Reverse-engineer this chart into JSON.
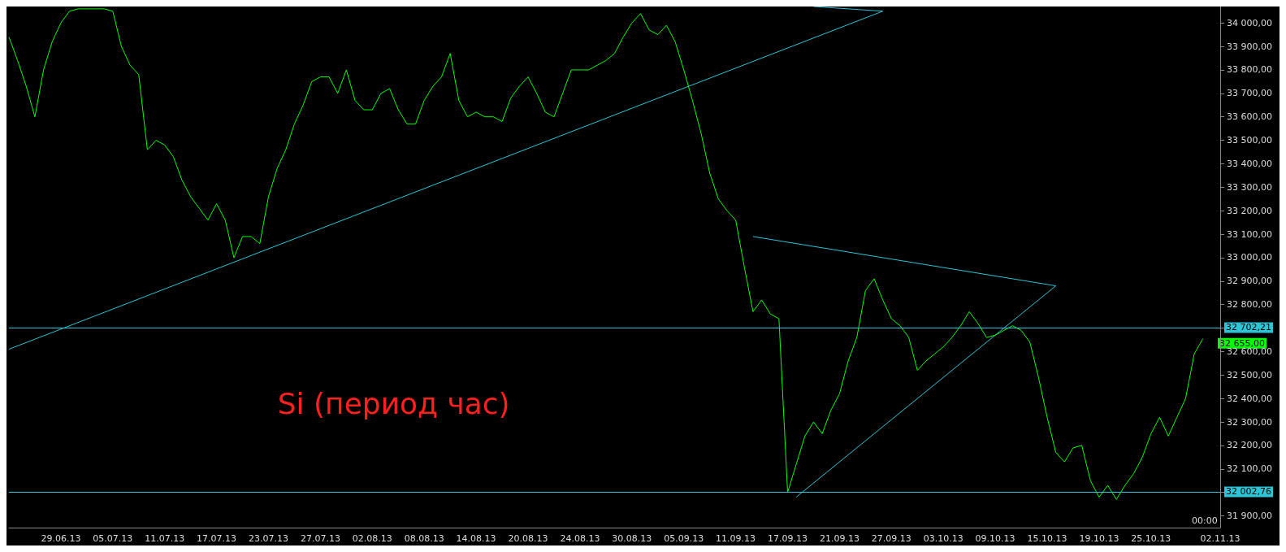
{
  "chart_data": {
    "type": "line",
    "marker": "none",
    "categories": [
      null,
      null,
      null,
      null,
      null,
      null,
      "29.06.13",
      null,
      null,
      null,
      null,
      null,
      "05.07.13",
      null,
      null,
      null,
      null,
      null,
      "11.07.13",
      null,
      null,
      null,
      null,
      null,
      "17.07.13",
      null,
      null,
      null,
      null,
      null,
      "23.07.13",
      null,
      null,
      null,
      null,
      null,
      "27.07.13",
      null,
      null,
      null,
      null,
      null,
      "02.08.13",
      null,
      null,
      null,
      null,
      null,
      "08.08.13",
      null,
      null,
      null,
      null,
      null,
      "14.08.13",
      null,
      null,
      null,
      null,
      null,
      "20.08.13",
      null,
      null,
      null,
      null,
      null,
      "24.08.13",
      null,
      null,
      null,
      null,
      null,
      "30.08.13",
      null,
      null,
      null,
      null,
      null,
      "05.09.13",
      null,
      null,
      null,
      null,
      null,
      "11.09.13",
      null,
      null,
      null,
      null,
      null,
      "17.09.13",
      null,
      null,
      null,
      null,
      null,
      "21.09.13",
      null,
      null,
      null,
      null,
      null,
      "27.09.13",
      null,
      null,
      null,
      null,
      null,
      "03.10.13",
      null,
      null,
      null,
      null,
      null,
      "09.10.13",
      null,
      null,
      null,
      null,
      null,
      "15.10.13",
      null,
      null,
      null,
      null,
      null,
      "19.10.13",
      null,
      null,
      null,
      null,
      null,
      "25.10.13",
      null,
      null,
      null,
      null,
      null,
      null,
      null,
      "02.11.13"
    ],
    "series": [
      {
        "color": "#00ff00",
        "values": [
          33940,
          33840,
          33730,
          33600,
          33800,
          33920,
          34000,
          34050,
          34060,
          34060,
          34060,
          34060,
          34050,
          33900,
          33820,
          33780,
          33460,
          33500,
          33480,
          33430,
          33330,
          33260,
          33210,
          33160,
          33230,
          33160,
          33000,
          33090,
          33090,
          33060,
          33260,
          33380,
          33460,
          33570,
          33650,
          33750,
          33770,
          33770,
          33700,
          33800,
          33670,
          33630,
          33630,
          33700,
          33720,
          33630,
          33570,
          33570,
          33670,
          33730,
          33770,
          33870,
          33670,
          33600,
          33620,
          33600,
          33600,
          33580,
          33680,
          33730,
          33770,
          33700,
          33620,
          33600,
          33700,
          33800,
          33800,
          33800,
          33820,
          33840,
          33870,
          33940,
          34000,
          34040,
          33970,
          33950,
          33990,
          33920,
          33800,
          33670,
          33530,
          33360,
          33250,
          33200,
          33160,
          32960,
          32770,
          32820,
          32760,
          32740,
          32000,
          32120,
          32240,
          32300,
          32250,
          32350,
          32420,
          32560,
          32660,
          32860,
          32910,
          32820,
          32740,
          32710,
          32660,
          32520,
          32560,
          32590,
          32620,
          32660,
          32710,
          32770,
          32720,
          32660,
          32670,
          32690,
          32710,
          32690,
          32640,
          32490,
          32320,
          32170,
          32130,
          32190,
          32200,
          32050,
          31980,
          32030,
          31970,
          32030,
          32080,
          32150,
          32250,
          32320,
          32240,
          32320,
          32400,
          32590,
          32655,
          null,
          null
        ]
      },
      {
        "type": "line",
        "color": "#2ec4d6",
        "values": [
          32610,
          null,
          null,
          null,
          null,
          null,
          null,
          null,
          null,
          null,
          null,
          null,
          null,
          null,
          null,
          null,
          null,
          null,
          null,
          null,
          null,
          null,
          null,
          null,
          null,
          null,
          null,
          null,
          null,
          null,
          null,
          null,
          null,
          null,
          null,
          null,
          null,
          null,
          null,
          null,
          null,
          null,
          null,
          null,
          null,
          null,
          null,
          null,
          null,
          null,
          null,
          null,
          null,
          null,
          null,
          null,
          null,
          null,
          null,
          null,
          null,
          null,
          null,
          null,
          null,
          null,
          null,
          null,
          null,
          null,
          null,
          null,
          null,
          null,
          null,
          null,
          null,
          null,
          null,
          null,
          null,
          null,
          null,
          null,
          null,
          null,
          null,
          null,
          null,
          null,
          null,
          null,
          null,
          null,
          null,
          null,
          null,
          null,
          null,
          null,
          null,
          34050,
          null,
          null,
          null,
          null,
          null,
          null,
          null,
          null,
          null,
          null,
          null,
          null,
          null,
          null,
          null,
          null,
          null,
          null,
          null,
          null,
          null,
          null,
          null,
          null,
          null,
          null,
          null,
          null,
          null,
          null,
          null,
          null,
          null,
          null,
          null,
          null,
          null,
          null,
          null
        ]
      },
      {
        "type": "line",
        "color": "#2ec4d6",
        "values": [
          null,
          null,
          null,
          null,
          null,
          null,
          null,
          null,
          null,
          null,
          null,
          null,
          null,
          null,
          null,
          null,
          null,
          null,
          null,
          null,
          null,
          null,
          null,
          null,
          null,
          null,
          null,
          null,
          null,
          null,
          null,
          null,
          null,
          null,
          null,
          null,
          null,
          null,
          null,
          null,
          null,
          null,
          null,
          null,
          null,
          null,
          null,
          null,
          null,
          null,
          null,
          null,
          null,
          null,
          null,
          null,
          null,
          null,
          null,
          null,
          null,
          null,
          null,
          null,
          null,
          null,
          null,
          null,
          null,
          null,
          null,
          null,
          null,
          null,
          null,
          null,
          null,
          null,
          null,
          null,
          null,
          null,
          null,
          null,
          null,
          null,
          null,
          null,
          null,
          null,
          null,
          null,
          null,
          34070,
          null,
          null,
          null,
          null,
          null,
          null,
          null,
          34050,
          null,
          null,
          null,
          null,
          null,
          null,
          null,
          null,
          null,
          null,
          null,
          null,
          null,
          null,
          null,
          null,
          null,
          null,
          null,
          null,
          null,
          null,
          null,
          null,
          null,
          null,
          null,
          null,
          null,
          null,
          null,
          null,
          null,
          null,
          null,
          null,
          null,
          null,
          null
        ]
      },
      {
        "type": "line",
        "color": "#2ec4d6",
        "values": [
          null,
          null,
          null,
          null,
          null,
          null,
          null,
          null,
          null,
          null,
          null,
          null,
          null,
          null,
          null,
          null,
          null,
          null,
          null,
          null,
          null,
          null,
          null,
          null,
          null,
          null,
          null,
          null,
          null,
          null,
          null,
          null,
          null,
          null,
          null,
          null,
          null,
          null,
          null,
          null,
          null,
          null,
          null,
          null,
          null,
          null,
          null,
          null,
          null,
          null,
          null,
          null,
          null,
          null,
          null,
          null,
          null,
          null,
          null,
          null,
          null,
          null,
          null,
          null,
          null,
          null,
          null,
          null,
          null,
          null,
          null,
          null,
          null,
          null,
          null,
          null,
          null,
          null,
          null,
          null,
          null,
          null,
          null,
          null,
          null,
          null,
          33090,
          null,
          null,
          null,
          null,
          null,
          null,
          null,
          null,
          null,
          null,
          null,
          null,
          null,
          null,
          null,
          null,
          null,
          null,
          null,
          null,
          null,
          null,
          null,
          null,
          null,
          null,
          null,
          null,
          null,
          null,
          null,
          null,
          null,
          null,
          32880,
          null,
          null,
          null,
          null,
          null,
          null,
          null,
          null,
          null,
          null,
          null,
          null,
          null,
          null,
          null,
          null,
          null,
          null,
          null
        ]
      },
      {
        "type": "line",
        "color": "#2ec4d6",
        "values": [
          null,
          null,
          null,
          null,
          null,
          null,
          null,
          null,
          null,
          null,
          null,
          null,
          null,
          null,
          null,
          null,
          null,
          null,
          null,
          null,
          null,
          null,
          null,
          null,
          null,
          null,
          null,
          null,
          null,
          null,
          null,
          null,
          null,
          null,
          null,
          null,
          null,
          null,
          null,
          null,
          null,
          null,
          null,
          null,
          null,
          null,
          null,
          null,
          null,
          null,
          null,
          null,
          null,
          null,
          null,
          null,
          null,
          null,
          null,
          null,
          null,
          null,
          null,
          null,
          null,
          null,
          null,
          null,
          null,
          null,
          null,
          null,
          null,
          null,
          null,
          null,
          null,
          null,
          null,
          null,
          null,
          null,
          null,
          null,
          null,
          null,
          null,
          null,
          null,
          null,
          null,
          31980,
          null,
          null,
          null,
          null,
          null,
          null,
          null,
          null,
          null,
          null,
          null,
          null,
          null,
          null,
          null,
          null,
          null,
          null,
          null,
          null,
          null,
          null,
          null,
          null,
          null,
          null,
          null,
          null,
          null,
          32880,
          null,
          null,
          null,
          null,
          null,
          null,
          null,
          null,
          null,
          null,
          null,
          null,
          null,
          null,
          null,
          null,
          null,
          null,
          null
        ]
      }
    ],
    "ylim": [
      31850,
      34070
    ],
    "yticks": [
      {
        "value": 31900,
        "label": "31 900,00"
      },
      {
        "value": 32000,
        "label": null
      },
      {
        "value": 32100,
        "label": "32 100,00"
      },
      {
        "value": 32200,
        "label": "32 200,00"
      },
      {
        "value": 32300,
        "label": "32 300,00"
      },
      {
        "value": 32400,
        "label": "32 400,00"
      },
      {
        "value": 32500,
        "label": "32 500,00"
      },
      {
        "value": 32600,
        "label": "32 600,00"
      },
      {
        "value": 32700,
        "label": null
      },
      {
        "value": 32800,
        "label": "32 800,00"
      },
      {
        "value": 32900,
        "label": "32 900,00"
      },
      {
        "value": 33000,
        "label": "33 000,00"
      },
      {
        "value": 33100,
        "label": "33 100,00"
      },
      {
        "value": 33200,
        "label": "33 200,00"
      },
      {
        "value": 33300,
        "label": "33 300,00"
      },
      {
        "value": 33400,
        "label": "33 400,00"
      },
      {
        "value": 33500,
        "label": "33 500,00"
      },
      {
        "value": 33600,
        "label": "33 600,00"
      },
      {
        "value": 33700,
        "label": "33 700,00"
      },
      {
        "value": 33800,
        "label": "33 800,00"
      },
      {
        "value": 33900,
        "label": "33 900,00"
      },
      {
        "value": 34000,
        "label": "34 000,00"
      }
    ],
    "ref_lines": [
      {
        "axis": "y",
        "value": 32702.21,
        "label": "32 702,21",
        "color": "#2ec4d6"
      },
      {
        "axis": "y",
        "value": 32002.76,
        "label": "32 002,76",
        "color": "#2ec4d6"
      }
    ],
    "annotations": [
      "Si (период час)",
      "00:00",
      "32 655,00"
    ]
  }
}
